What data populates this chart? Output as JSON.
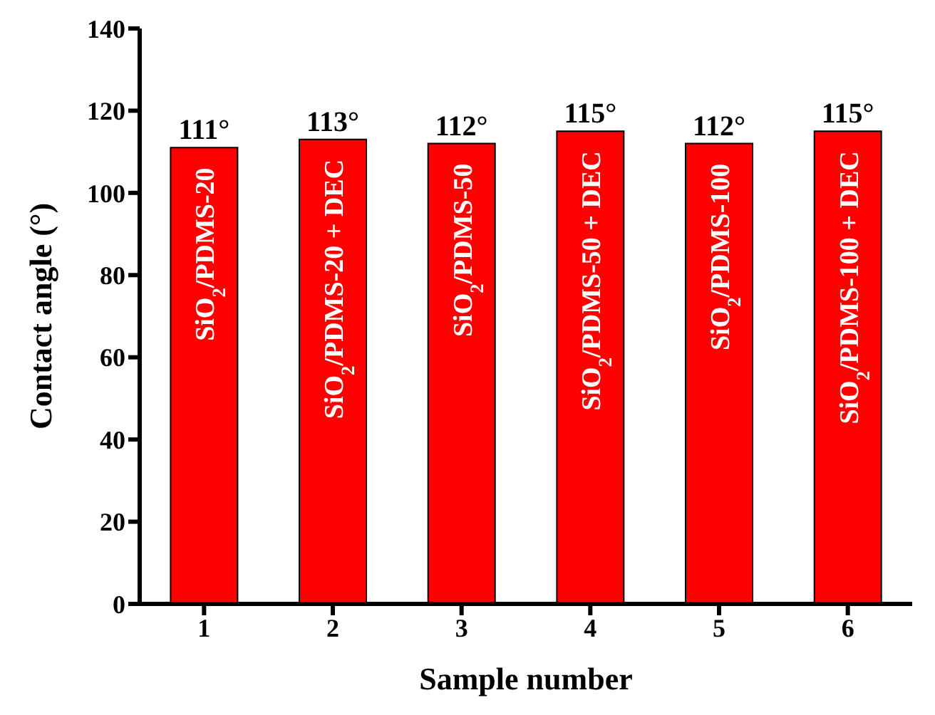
{
  "chart_data": {
    "type": "bar",
    "xlabel": "Sample number",
    "ylabel": "Contact angle (°)",
    "categories": [
      "1",
      "2",
      "3",
      "4",
      "5",
      "6"
    ],
    "values": [
      111,
      113,
      112,
      115,
      112,
      115
    ],
    "value_labels": [
      "111°",
      "113°",
      "112°",
      "115°",
      "112°",
      "115°"
    ],
    "color": "#ff0000",
    "ylim": [
      0,
      140
    ],
    "yticks": [
      0,
      20,
      40,
      60,
      80,
      100,
      120,
      140
    ],
    "grid": false,
    "annotations": [
      "SiO$_{2}$/PDMS-20",
      "SiO$_{2}$/PDMS-20 + DEC",
      "SiO$_{2}$/PDMS-50",
      "SiO$_{2}$/PDMS-50 + DEC",
      "SiO$_{2}$/PDMS-100",
      "SiO$_{2}$/PDMS-100 + DEC"
    ]
  }
}
